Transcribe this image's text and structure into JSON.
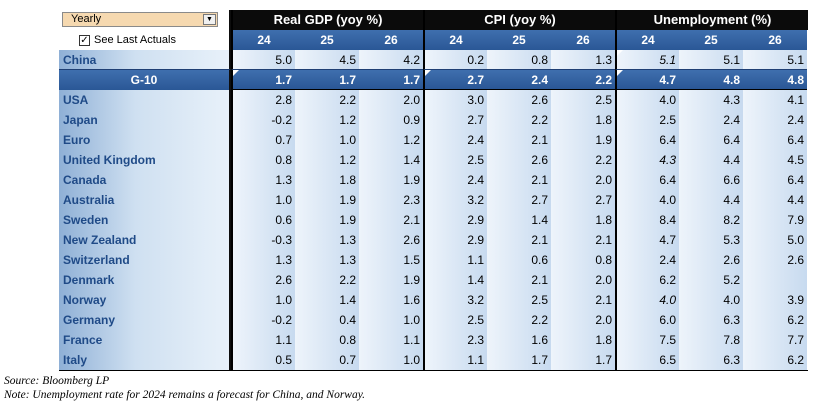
{
  "controls": {
    "period_dropdown": "Yearly",
    "checkbox_checked": true,
    "checkbox_label": "See Last Actuals"
  },
  "groups": [
    "Real GDP (yoy %)",
    "CPI (yoy %)",
    "Unemployment (%)"
  ],
  "years": [
    "24",
    "25",
    "26"
  ],
  "rows": [
    {
      "label": "China",
      "values": [
        "5.0",
        "4.5",
        "4.2",
        "0.2",
        "0.8",
        "1.3",
        "5.1",
        "5.1",
        "5.1"
      ],
      "style": "china"
    },
    {
      "label": "G-10",
      "values": [
        "1.7",
        "1.7",
        "1.7",
        "2.7",
        "2.4",
        "2.2",
        "4.7",
        "4.8",
        "4.8"
      ],
      "style": "g10"
    },
    {
      "label": "USA",
      "values": [
        "2.8",
        "2.2",
        "2.0",
        "3.0",
        "2.6",
        "2.5",
        "4.0",
        "4.3",
        "4.1"
      ]
    },
    {
      "label": "Japan",
      "values": [
        "-0.2",
        "1.2",
        "0.9",
        "2.7",
        "2.2",
        "1.8",
        "2.5",
        "2.4",
        "2.4"
      ]
    },
    {
      "label": "Euro",
      "values": [
        "0.7",
        "1.0",
        "1.2",
        "2.4",
        "2.1",
        "1.9",
        "6.4",
        "6.4",
        "6.4"
      ]
    },
    {
      "label": "United  Kingdom",
      "values": [
        "0.8",
        "1.2",
        "1.4",
        "2.5",
        "2.6",
        "2.2",
        "4.3",
        "4.4",
        "4.5"
      ]
    },
    {
      "label": "Canada",
      "values": [
        "1.3",
        "1.8",
        "1.9",
        "2.4",
        "2.1",
        "2.0",
        "6.4",
        "6.6",
        "6.4"
      ]
    },
    {
      "label": "Australia",
      "values": [
        "1.0",
        "1.9",
        "2.3",
        "3.2",
        "2.7",
        "2.7",
        "4.0",
        "4.4",
        "4.4"
      ]
    },
    {
      "label": "Sweden",
      "values": [
        "0.6",
        "1.9",
        "2.1",
        "2.9",
        "1.4",
        "1.8",
        "8.4",
        "8.2",
        "7.9"
      ]
    },
    {
      "label": "New Zealand",
      "values": [
        "-0.3",
        "1.3",
        "2.6",
        "2.9",
        "2.1",
        "2.1",
        "4.7",
        "5.3",
        "5.0"
      ]
    },
    {
      "label": "Switzerland",
      "values": [
        "1.3",
        "1.3",
        "1.5",
        "1.1",
        "0.6",
        "0.8",
        "2.4",
        "2.6",
        "2.6"
      ]
    },
    {
      "label": "Denmark",
      "values": [
        "2.6",
        "2.2",
        "1.9",
        "1.4",
        "2.1",
        "2.0",
        "6.2",
        "5.2",
        ""
      ]
    },
    {
      "label": "Norway",
      "values": [
        "1.0",
        "1.4",
        "1.6",
        "3.2",
        "2.5",
        "2.1",
        "4.0",
        "4.0",
        "3.9"
      ]
    },
    {
      "label": "Germany",
      "values": [
        "-0.2",
        "0.4",
        "1.0",
        "2.5",
        "2.2",
        "2.0",
        "6.0",
        "6.3",
        "6.2"
      ]
    },
    {
      "label": "France",
      "values": [
        "1.1",
        "0.8",
        "1.1",
        "2.3",
        "1.6",
        "1.8",
        "7.5",
        "7.8",
        "7.7"
      ]
    },
    {
      "label": "Italy",
      "values": [
        "0.5",
        "0.7",
        "1.0",
        "1.1",
        "1.7",
        "1.7",
        "6.5",
        "6.3",
        "6.2"
      ]
    }
  ],
  "italic_cells": [
    [
      0,
      6
    ],
    [
      5,
      6
    ],
    [
      12,
      6
    ]
  ],
  "notes": {
    "source": "Source: Bloomberg LP",
    "note": "Note: Unemployment rate for 2024 remains a forecast for China, and Norway."
  }
}
